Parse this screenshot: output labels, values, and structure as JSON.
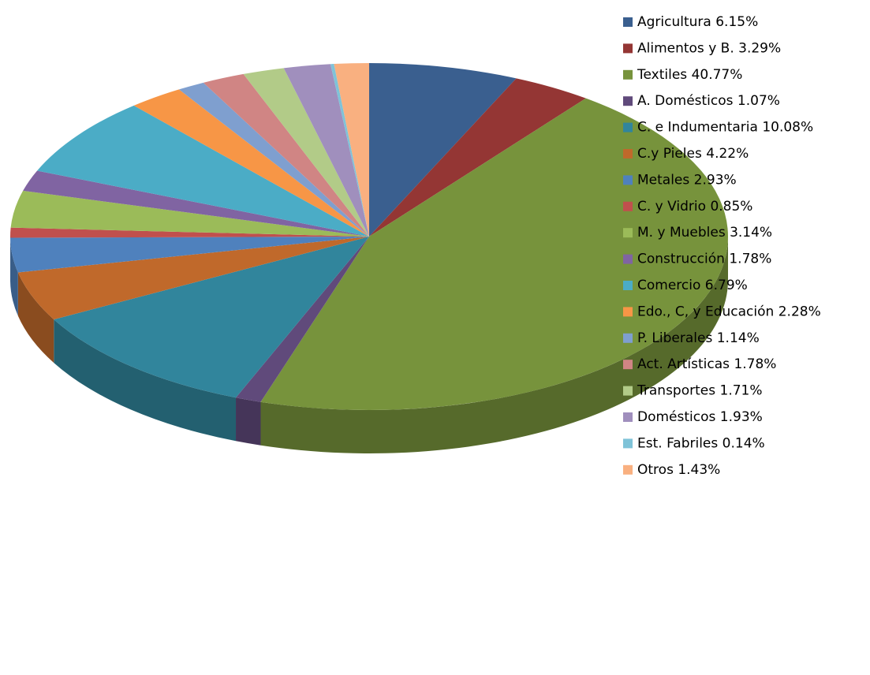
{
  "chart_data": {
    "type": "pie3d",
    "categories": [
      "Agricultura",
      "Alimentos y B.",
      "Textiles",
      "A. Domésticos",
      "C. e Indumentaria",
      "C.y Pieles",
      "Metales",
      "C. y Vidrio",
      "M. y Muebles",
      "Construcción",
      "Comercio",
      "Edo., C, y Educación",
      "P. Liberales",
      "Act. Artísticas",
      "Transportes",
      "Domésticos",
      "Est. Fabriles",
      "Otros"
    ],
    "values": [
      6.15,
      3.29,
      40.77,
      1.07,
      10.08,
      4.22,
      2.93,
      0.85,
      3.14,
      1.78,
      6.79,
      2.28,
      1.14,
      1.78,
      1.71,
      1.93,
      0.14,
      1.43
    ],
    "value_labels": [
      "6.15%",
      "3.29%",
      "40.77%",
      "1.07%",
      "10.08%",
      "4.22%",
      "2.93%",
      "0.85%",
      "3.14%",
      "1.78%",
      "6.79%",
      "2.28%",
      "1.14%",
      "1.78%",
      "1.71%",
      "1.93%",
      "0.14%",
      "1.43%"
    ],
    "colors": [
      "#3a5f8f",
      "#943634",
      "#77933c",
      "#604a7b",
      "#31859c",
      "#c0692b",
      "#4f81bd",
      "#c0504d",
      "#9bbb59",
      "#8064a2",
      "#4bacc6",
      "#f79646",
      "#7f9fcf",
      "#d08584",
      "#b2cb88",
      "#a08fbd",
      "#7fc3d8",
      "#f9b080"
    ],
    "legend": "right"
  }
}
